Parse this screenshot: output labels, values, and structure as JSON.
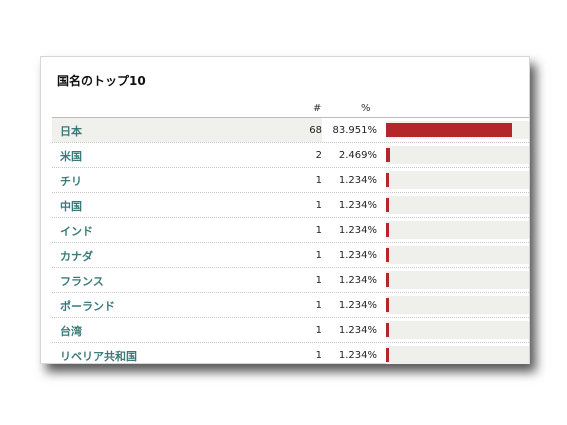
{
  "panel": {
    "title": "国名のトップ10",
    "headers": {
      "count": "#",
      "percent": "%"
    }
  },
  "colors": {
    "bar": "#b3272a",
    "link": "#3a7a7a",
    "track": "#efefeb"
  },
  "rows": [
    {
      "name": "日本",
      "count": "68",
      "percent": "83.951%",
      "fraction": 0.83951
    },
    {
      "name": "米国",
      "count": "2",
      "percent": "2.469%",
      "fraction": 0.02469
    },
    {
      "name": "チリ",
      "count": "1",
      "percent": "1.234%",
      "fraction": 0.01234
    },
    {
      "name": "中国",
      "count": "1",
      "percent": "1.234%",
      "fraction": 0.01234
    },
    {
      "name": "インド",
      "count": "1",
      "percent": "1.234%",
      "fraction": 0.01234
    },
    {
      "name": "カナダ",
      "count": "1",
      "percent": "1.234%",
      "fraction": 0.01234
    },
    {
      "name": "フランス",
      "count": "1",
      "percent": "1.234%",
      "fraction": 0.01234
    },
    {
      "name": "ポーランド",
      "count": "1",
      "percent": "1.234%",
      "fraction": 0.01234
    },
    {
      "name": "台湾",
      "count": "1",
      "percent": "1.234%",
      "fraction": 0.01234
    },
    {
      "name": "リベリア共和国",
      "count": "1",
      "percent": "1.234%",
      "fraction": 0.01234
    }
  ]
}
